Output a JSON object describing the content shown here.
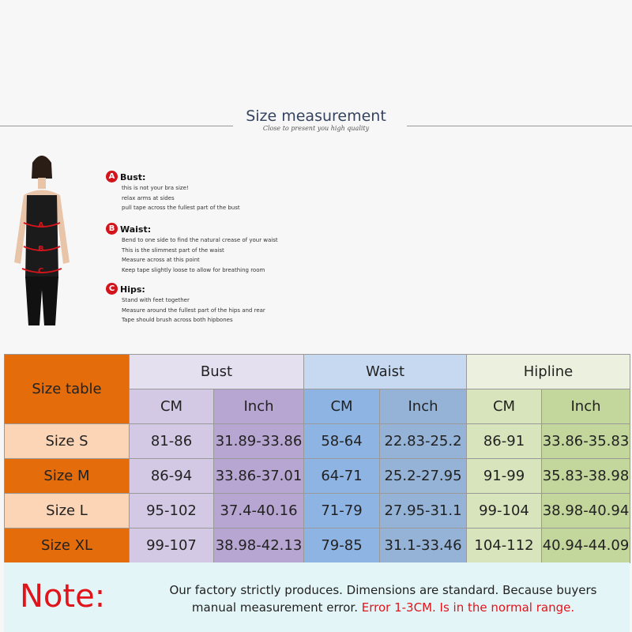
{
  "header": {
    "title": "Size measurement",
    "subtitle": "Close to present you high quality"
  },
  "guide": [
    {
      "letter": "A",
      "label": "Bust:",
      "lines": [
        "this is not your bra size!",
        "relax arms at sides",
        "pull tape across the fullest part of the bust"
      ]
    },
    {
      "letter": "B",
      "label": "Waist:",
      "lines": [
        "Bend  to one side to find the natural crease of your waist",
        "This is the slimmest part of the waist",
        "Measure across at this point",
        "Keep tape slightly loose to allow for breathing room"
      ]
    },
    {
      "letter": "C",
      "label": "Hips:",
      "lines": [
        "Stand with feet together",
        "Measure around the fullest part of the hips and rear",
        "Tape should brush across both hipbones"
      ]
    }
  ],
  "table": {
    "corner": "Size table",
    "groups": [
      "Bust",
      "Waist",
      "Hipline"
    ],
    "units": [
      "CM",
      "Inch",
      "CM",
      "Inch",
      "CM",
      "Inch"
    ],
    "rows": [
      {
        "size": "Size S",
        "values": [
          "81-86",
          "31.89-33.86",
          "58-64",
          "22.83-25.2",
          "86-91",
          "33.86-35.83"
        ]
      },
      {
        "size": "Size M",
        "values": [
          "86-94",
          "33.86-37.01",
          "64-71",
          "25.2-27.95",
          "91-99",
          "35.83-38.98"
        ]
      },
      {
        "size": "Size L",
        "values": [
          "95-102",
          "37.4-40.16",
          "71-79",
          "27.95-31.1",
          "99-104",
          "38.98-40.94"
        ]
      },
      {
        "size": "Size XL",
        "values": [
          "99-107",
          "38.98-42.13",
          "79-85",
          "31.1-33.46",
          "104-112",
          "40.94-44.09"
        ]
      }
    ],
    "colors": {
      "orange": "#e46c0a",
      "peach": "#fbd5b5",
      "bust": "#e5e0ef",
      "bust_cm": "#d4c9e4",
      "bust_in": "#b8a6d2",
      "waist": "#c6d9f0",
      "waist_cm": "#8db4e2",
      "waist_in": "#95b3d7",
      "hip": "#ebf1de",
      "hip_cm": "#d8e4bc",
      "hip_in": "#c3d69b"
    }
  },
  "note": {
    "label": "Note:",
    "text": "Our factory strictly produces. Dimensions are standard. Because buyers manual measurement error.",
    "error": "Error 1-3CM. Is in the normal range."
  }
}
